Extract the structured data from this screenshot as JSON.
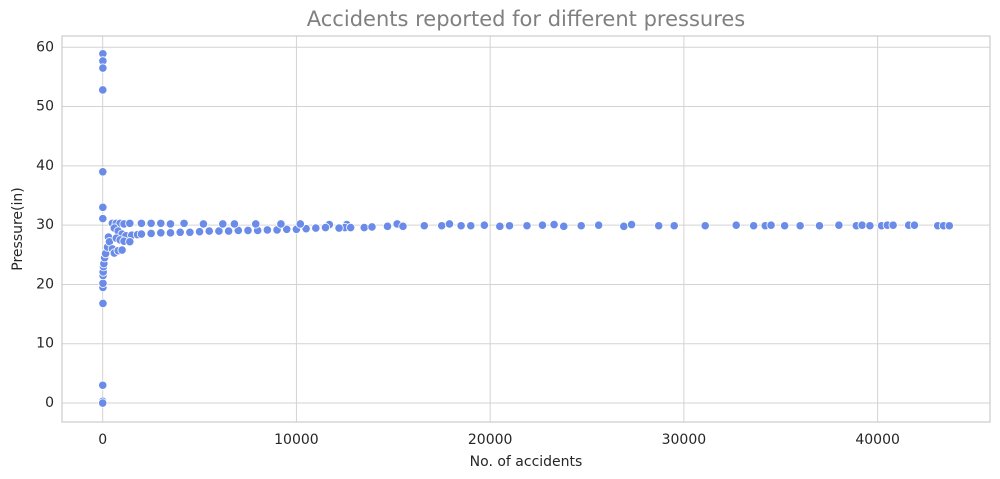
{
  "chart_data": {
    "type": "scatter",
    "title": "Accidents reported for different pressures",
    "x_label": "No. of accidents",
    "y_label": "Pressure(in)",
    "color": "#6a8be8",
    "grid": true,
    "xlim": [
      -2100,
      45800
    ],
    "ylim": [
      -3.2,
      61.9
    ],
    "xticks": [
      0,
      10000,
      20000,
      30000,
      40000
    ],
    "yticks": [
      0,
      10,
      20,
      30,
      40,
      50,
      60
    ],
    "x": [
      10,
      10,
      10,
      5,
      5,
      8,
      8,
      3,
      2,
      1,
      15,
      12,
      15,
      20,
      25,
      40,
      60,
      100,
      150,
      250,
      300,
      350,
      500,
      700,
      900,
      1100,
      1400,
      600,
      800,
      1000,
      1200,
      1500,
      1800,
      700,
      900,
      1100,
      1400,
      500,
      600,
      800,
      1000,
      2000,
      2500,
      3000,
      3500,
      4000,
      4500,
      5000,
      5500,
      6000,
      6500,
      7000,
      7500,
      8000,
      8500,
      9000,
      9500,
      10000,
      10500,
      11000,
      2000,
      2500,
      3000,
      3500,
      4200,
      5200,
      6200,
      6800,
      7900,
      9200,
      10200,
      11700,
      12600,
      13500,
      12500,
      11500,
      12200,
      12800,
      13900,
      14700,
      15200,
      15500,
      16600,
      17500,
      17900,
      18500,
      19000,
      19700,
      20500,
      21000,
      21900,
      22700,
      23300,
      23800,
      24700,
      25600,
      26900,
      27300,
      28700,
      29500,
      31100,
      32700,
      33600,
      34200,
      34500,
      35200,
      36000,
      37000,
      38000,
      38900,
      39200,
      39600,
      40200,
      40500,
      40800,
      41600,
      41900,
      43100,
      43400,
      43700
    ],
    "values": [
      58.9,
      57.7,
      56.5,
      52.8,
      39,
      33,
      31.1,
      3,
      0.3,
      0,
      16.8,
      19.5,
      20.2,
      21.5,
      22.1,
      23,
      23.5,
      24.5,
      25.2,
      26.3,
      28,
      27.2,
      30.3,
      30.3,
      30.3,
      30.2,
      30.3,
      29.5,
      29,
      28.5,
      28.2,
      28.3,
      28.4,
      27.8,
      27.5,
      27.3,
      27.2,
      26,
      25.3,
      25.7,
      25.8,
      28.5,
      28.6,
      28.7,
      28.7,
      28.8,
      28.8,
      28.9,
      29,
      29,
      29,
      29.1,
      29.1,
      29.1,
      29.2,
      29.2,
      29.3,
      29.3,
      29.4,
      29.5,
      30.3,
      30.3,
      30.3,
      30.2,
      30.3,
      30.2,
      30.2,
      30.2,
      30.2,
      30.2,
      30.2,
      30.1,
      30.1,
      29.6,
      29.6,
      29.6,
      29.5,
      29.6,
      29.7,
      29.8,
      30.2,
      29.8,
      29.9,
      29.9,
      30.2,
      29.9,
      29.9,
      30,
      29.8,
      29.9,
      29.9,
      30,
      30.1,
      29.8,
      29.9,
      30,
      29.8,
      30.1,
      29.9,
      29.9,
      29.9,
      30,
      29.9,
      29.9,
      30,
      29.9,
      29.9,
      29.9,
      30,
      29.9,
      30,
      29.9,
      29.9,
      30,
      30,
      30,
      30,
      29.9,
      29.9,
      29.9
    ]
  }
}
